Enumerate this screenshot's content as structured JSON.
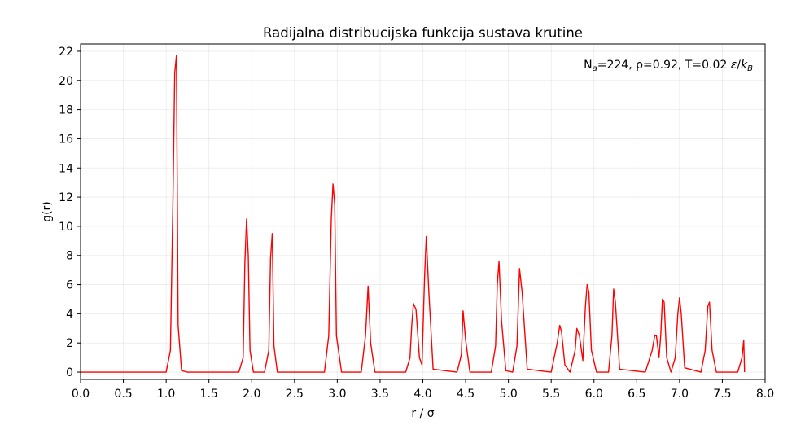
{
  "chart_data": {
    "type": "line",
    "title": "Radijalna distribucijska funkcija sustava krutine",
    "xlabel": "r / σ",
    "ylabel": "g(r)",
    "xlim": [
      0.0,
      8.0
    ],
    "ylim": [
      -0.5,
      22.5
    ],
    "x_ticks": [
      "0.0",
      "0.5",
      "1.0",
      "1.5",
      "2.0",
      "2.5",
      "3.0",
      "3.5",
      "4.0",
      "4.5",
      "5.0",
      "5.5",
      "6.0",
      "6.5",
      "7.0",
      "7.5",
      "8.0"
    ],
    "y_ticks": [
      "0",
      "2",
      "4",
      "6",
      "8",
      "10",
      "12",
      "14",
      "16",
      "18",
      "20",
      "22"
    ],
    "grid": true,
    "annotation": {
      "prefix": "N",
      "sub_a": "a",
      "middle": "=224, ρ=0.92, T=0.02 ",
      "eps": "ε",
      "slash": "/",
      "k": "k",
      "sub_b": "B"
    },
    "series": [
      {
        "color": "#ff0000",
        "x": [
          0.0,
          1.0,
          1.05,
          1.08,
          1.1,
          1.12,
          1.14,
          1.18,
          1.25,
          1.85,
          1.9,
          1.92,
          1.94,
          1.96,
          1.98,
          2.02,
          2.15,
          2.2,
          2.22,
          2.24,
          2.26,
          2.3,
          2.85,
          2.9,
          2.93,
          2.95,
          2.97,
          2.99,
          3.05,
          3.28,
          3.33,
          3.36,
          3.39,
          3.44,
          3.8,
          3.85,
          3.87,
          3.89,
          3.92,
          3.96,
          3.99,
          4.02,
          4.04,
          4.07,
          4.12,
          4.4,
          4.45,
          4.47,
          4.5,
          4.55,
          4.8,
          4.85,
          4.87,
          4.89,
          4.92,
          4.97,
          5.05,
          5.1,
          5.13,
          5.16,
          5.22,
          5.5,
          5.57,
          5.6,
          5.62,
          5.66,
          5.72,
          5.78,
          5.8,
          5.83,
          5.87,
          5.9,
          5.92,
          5.94,
          5.97,
          6.03,
          6.17,
          6.21,
          6.23,
          6.25,
          6.3,
          6.6,
          6.68,
          6.71,
          6.73,
          6.76,
          6.78,
          6.8,
          6.82,
          6.85,
          6.9,
          6.95,
          6.98,
          7.0,
          7.02,
          7.06,
          7.25,
          7.3,
          7.33,
          7.35,
          7.38,
          7.43,
          7.68,
          7.73,
          7.75,
          7.76
        ],
        "y": [
          0,
          0,
          1.5,
          12,
          20.5,
          21.7,
          3.2,
          0.1,
          0,
          0,
          1.0,
          7.5,
          10.5,
          8.0,
          1.5,
          0,
          0,
          1.5,
          7.8,
          9.5,
          1.8,
          0,
          0,
          2.5,
          10.5,
          12.9,
          11.5,
          2.5,
          0,
          0,
          2.5,
          5.9,
          2.0,
          0,
          0,
          1.0,
          3.2,
          4.7,
          4.3,
          1.0,
          0.5,
          6.5,
          9.3,
          5.5,
          0.2,
          0,
          1.2,
          4.2,
          2.2,
          0,
          0,
          1.8,
          6.0,
          7.6,
          3.5,
          0.1,
          0,
          1.8,
          7.1,
          5.5,
          0.2,
          0,
          2.0,
          3.2,
          2.8,
          0.5,
          0,
          1.5,
          3.0,
          2.5,
          0.8,
          4.5,
          6.0,
          5.5,
          1.5,
          0,
          0,
          2.5,
          5.7,
          4.8,
          0.2,
          0,
          1.5,
          2.5,
          2.5,
          1.0,
          2.5,
          5.0,
          4.8,
          1.0,
          0,
          1.0,
          4.0,
          5.1,
          4.0,
          0.3,
          0,
          1.5,
          4.5,
          4.8,
          1.5,
          0,
          0,
          1.0,
          2.2,
          0
        ]
      }
    ]
  }
}
